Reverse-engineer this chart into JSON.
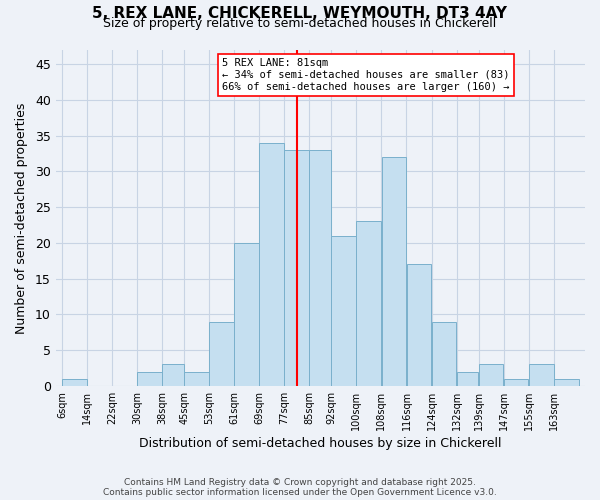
{
  "title": "5, REX LANE, CHICKERELL, WEYMOUTH, DT3 4AY",
  "subtitle": "Size of property relative to semi-detached houses in Chickerell",
  "xlabel": "Distribution of semi-detached houses by size in Chickerell",
  "ylabel": "Number of semi-detached properties",
  "bar_values": [
    1,
    0,
    0,
    2,
    3,
    2,
    9,
    20,
    34,
    33,
    33,
    21,
    23,
    32,
    17,
    9,
    2,
    3,
    1,
    3,
    1
  ],
  "bin_edges": [
    6,
    14,
    22,
    30,
    38,
    45,
    53,
    61,
    69,
    77,
    85,
    92,
    100,
    108,
    116,
    124,
    132,
    139,
    147,
    155,
    163,
    171
  ],
  "tick_labels": [
    "6sqm",
    "14sqm",
    "22sqm",
    "30sqm",
    "38sqm",
    "45sqm",
    "53sqm",
    "61sqm",
    "69sqm",
    "77sqm",
    "85sqm",
    "92sqm",
    "100sqm",
    "108sqm",
    "116sqm",
    "124sqm",
    "132sqm",
    "139sqm",
    "147sqm",
    "155sqm",
    "163sqm"
  ],
  "bar_color": "#c5dff0",
  "bar_edge_color": "#7ab0cc",
  "vline_x": 81,
  "vline_color": "red",
  "annotation_title": "5 REX LANE: 81sqm",
  "annotation_line1": "← 34% of semi-detached houses are smaller (83)",
  "annotation_line2": "66% of semi-detached houses are larger (160) →",
  "ylim": [
    0,
    47
  ],
  "yticks": [
    0,
    5,
    10,
    15,
    20,
    25,
    30,
    35,
    40,
    45
  ],
  "bg_color": "#eef2f8",
  "grid_color": "#c8d4e4",
  "footer1": "Contains HM Land Registry data © Crown copyright and database right 2025.",
  "footer2": "Contains public sector information licensed under the Open Government Licence v3.0."
}
